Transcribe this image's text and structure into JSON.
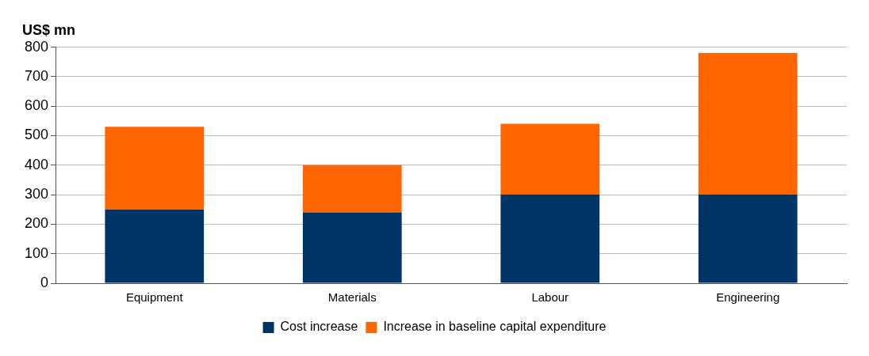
{
  "chart_data": {
    "type": "bar",
    "ylabel": "US$ mn",
    "categories": [
      "Equipment",
      "Materials",
      "Labour",
      "Engineering"
    ],
    "stacked": true,
    "series": [
      {
        "name": "Cost increase",
        "color": "#003366",
        "values": [
          250,
          240,
          300,
          300
        ]
      },
      {
        "name": "Increase in baseline capital expenditure",
        "color": "#ff6600",
        "values": [
          280,
          160,
          240,
          480
        ]
      }
    ],
    "ylim": [
      0,
      800
    ],
    "yticks": [
      0,
      100,
      200,
      300,
      400,
      500,
      600,
      700,
      800
    ],
    "grid": "y",
    "legend": "bottom"
  }
}
